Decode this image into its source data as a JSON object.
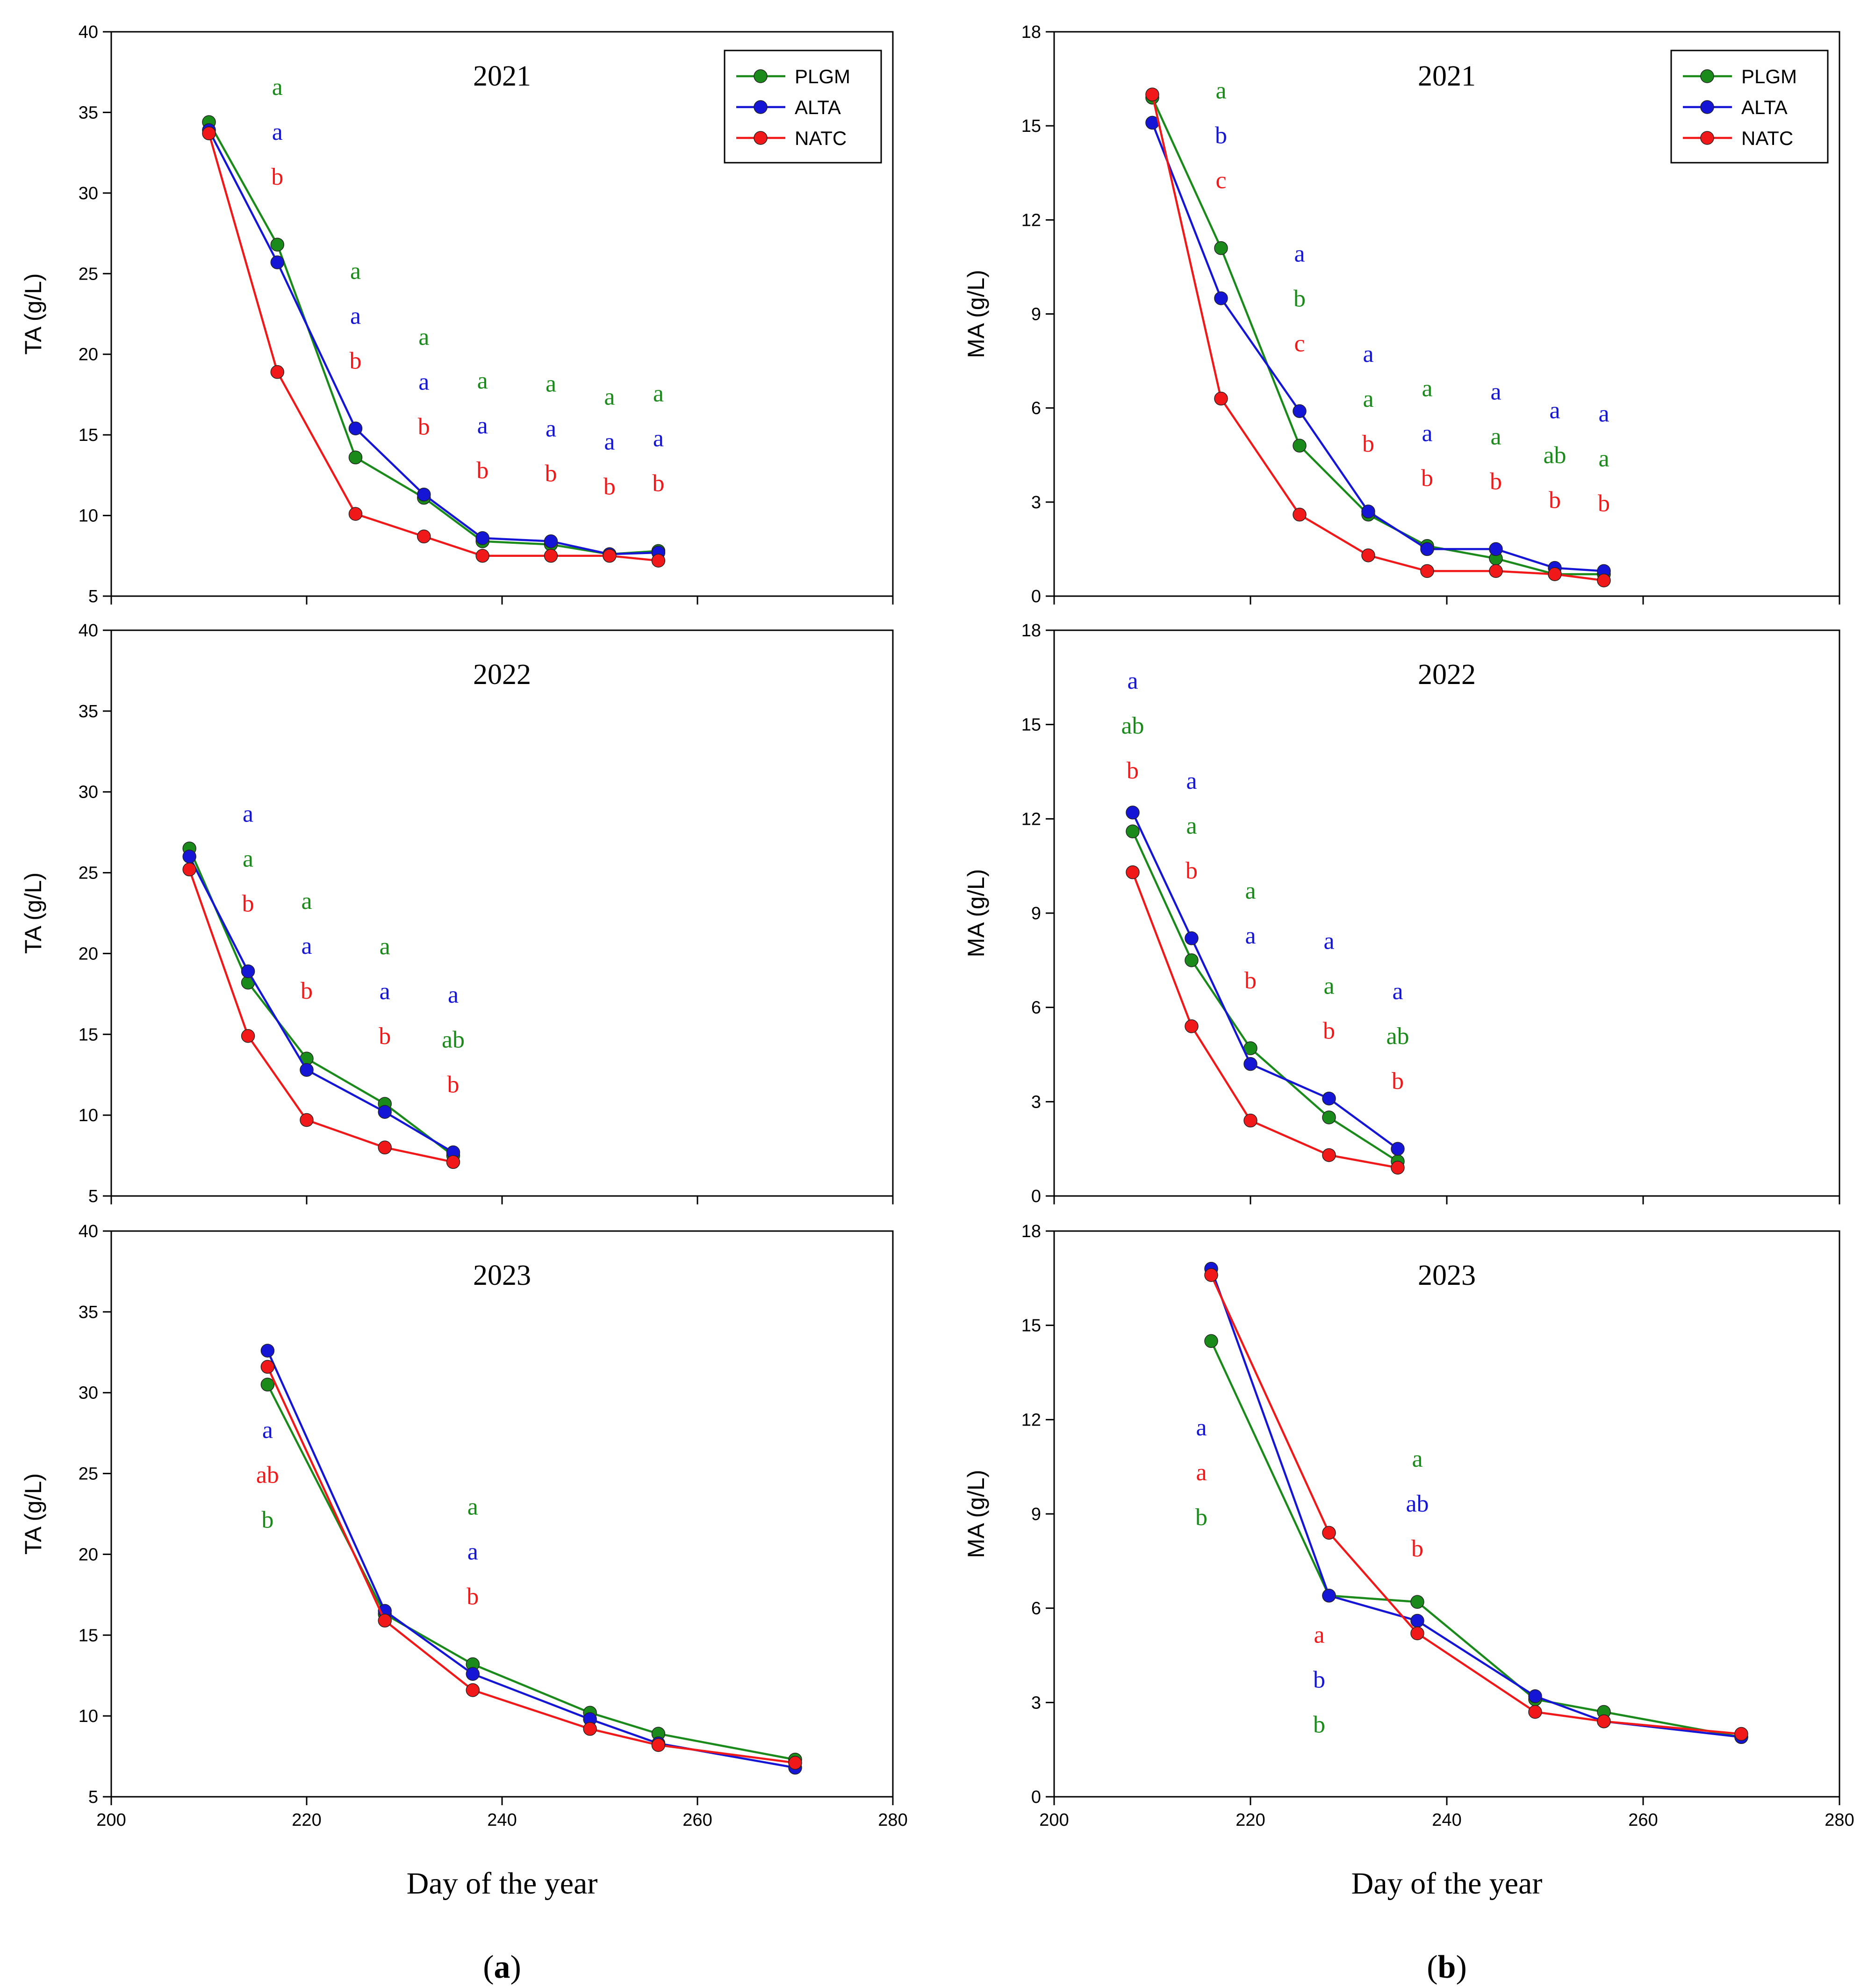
{
  "colors": {
    "PLGM": "#1a8a1a",
    "ALTA": "#1515d6",
    "NATC": "#f01818"
  },
  "legend": [
    "PLGM",
    "ALTA",
    "NATC"
  ],
  "xlabel": "Day of the year",
  "panel_labels": {
    "a": "(a)",
    "b": "(b)"
  },
  "panel_letters": {
    "a": "a",
    "b": "b"
  },
  "chart_data": [
    {
      "type": "line",
      "column": "a",
      "row": 0,
      "title": "2021",
      "ylabel": "TA (g/L)",
      "xlim": [
        200,
        280
      ],
      "ylim": [
        5,
        40
      ],
      "xticks": [
        200,
        220,
        240,
        260,
        280
      ],
      "yticks": [
        5,
        10,
        15,
        20,
        25,
        30,
        35,
        40
      ],
      "show_xticks": false,
      "legend": true,
      "series": [
        {
          "name": "PLGM",
          "x": [
            210,
            217,
            225,
            232,
            238,
            245,
            251,
            256
          ],
          "y": [
            34.4,
            26.8,
            13.6,
            11.1,
            8.4,
            8.2,
            7.6,
            7.8
          ]
        },
        {
          "name": "ALTA",
          "x": [
            210,
            217,
            225,
            232,
            238,
            245,
            251,
            256
          ],
          "y": [
            33.9,
            25.7,
            15.4,
            11.3,
            8.6,
            8.4,
            7.6,
            7.7
          ]
        },
        {
          "name": "NATC",
          "x": [
            210,
            217,
            225,
            232,
            238,
            245,
            251,
            256
          ],
          "y": [
            33.7,
            18.9,
            10.1,
            8.7,
            7.5,
            7.5,
            7.5,
            7.2
          ]
        }
      ],
      "annotations": [
        {
          "x": 217,
          "labels": [
            {
              "s": "PLGM",
              "t": "a"
            },
            {
              "s": "ALTA",
              "t": "a"
            },
            {
              "s": "NATC",
              "t": "b"
            }
          ]
        },
        {
          "x": 225,
          "labels": [
            {
              "s": "PLGM",
              "t": "a"
            },
            {
              "s": "ALTA",
              "t": "a"
            },
            {
              "s": "NATC",
              "t": "b"
            }
          ]
        },
        {
          "x": 232,
          "labels": [
            {
              "s": "PLGM",
              "t": "a"
            },
            {
              "s": "ALTA",
              "t": "a"
            },
            {
              "s": "NATC",
              "t": "b"
            }
          ]
        },
        {
          "x": 238,
          "labels": [
            {
              "s": "PLGM",
              "t": "a"
            },
            {
              "s": "ALTA",
              "t": "a"
            },
            {
              "s": "NATC",
              "t": "b"
            }
          ]
        },
        {
          "x": 245,
          "labels": [
            {
              "s": "PLGM",
              "t": "a"
            },
            {
              "s": "ALTA",
              "t": "a"
            },
            {
              "s": "NATC",
              "t": "b"
            }
          ]
        },
        {
          "x": 251,
          "labels": [
            {
              "s": "PLGM",
              "t": "a"
            },
            {
              "s": "ALTA",
              "t": "a"
            },
            {
              "s": "NATC",
              "t": "b"
            }
          ]
        },
        {
          "x": 256,
          "labels": [
            {
              "s": "PLGM",
              "t": "a"
            },
            {
              "s": "ALTA",
              "t": "a"
            },
            {
              "s": "NATC",
              "t": "b"
            }
          ]
        }
      ]
    },
    {
      "type": "line",
      "column": "a",
      "row": 1,
      "title": "2022",
      "ylabel": "TA (g/L)",
      "xlim": [
        200,
        280
      ],
      "ylim": [
        5,
        40
      ],
      "xticks": [
        200,
        220,
        240,
        260,
        280
      ],
      "yticks": [
        5,
        10,
        15,
        20,
        25,
        30,
        35,
        40
      ],
      "show_xticks": false,
      "legend": false,
      "series": [
        {
          "name": "PLGM",
          "x": [
            208,
            214,
            220,
            228,
            235
          ],
          "y": [
            26.5,
            18.2,
            13.5,
            10.7,
            7.5
          ]
        },
        {
          "name": "ALTA",
          "x": [
            208,
            214,
            220,
            228,
            235
          ],
          "y": [
            26.0,
            18.9,
            12.8,
            10.2,
            7.7
          ]
        },
        {
          "name": "NATC",
          "x": [
            208,
            214,
            220,
            228,
            235
          ],
          "y": [
            25.2,
            14.9,
            9.7,
            8.0,
            7.1
          ]
        }
      ],
      "annotations": [
        {
          "x": 214,
          "labels": [
            {
              "s": "ALTA",
              "t": "a"
            },
            {
              "s": "PLGM",
              "t": "a"
            },
            {
              "s": "NATC",
              "t": "b"
            }
          ]
        },
        {
          "x": 220,
          "labels": [
            {
              "s": "PLGM",
              "t": "a"
            },
            {
              "s": "ALTA",
              "t": "a"
            },
            {
              "s": "NATC",
              "t": "b"
            }
          ]
        },
        {
          "x": 228,
          "labels": [
            {
              "s": "PLGM",
              "t": "a"
            },
            {
              "s": "ALTA",
              "t": "a"
            },
            {
              "s": "NATC",
              "t": "b"
            }
          ]
        },
        {
          "x": 235,
          "labels": [
            {
              "s": "ALTA",
              "t": "a"
            },
            {
              "s": "PLGM",
              "t": "ab"
            },
            {
              "s": "NATC",
              "t": "b"
            }
          ]
        }
      ]
    },
    {
      "type": "line",
      "column": "a",
      "row": 2,
      "title": "2023",
      "ylabel": "TA (g/L)",
      "xlim": [
        200,
        280
      ],
      "ylim": [
        5,
        40
      ],
      "xticks": [
        200,
        220,
        240,
        260,
        280
      ],
      "yticks": [
        5,
        10,
        15,
        20,
        25,
        30,
        35,
        40
      ],
      "show_xticks": true,
      "legend": false,
      "series": [
        {
          "name": "PLGM",
          "x": [
            216,
            228,
            237,
            249,
            256,
            270
          ],
          "y": [
            30.5,
            16.3,
            13.2,
            10.2,
            8.9,
            7.3
          ]
        },
        {
          "name": "ALTA",
          "x": [
            216,
            228,
            237,
            249,
            256,
            270
          ],
          "y": [
            32.6,
            16.5,
            12.6,
            9.8,
            8.3,
            6.8
          ]
        },
        {
          "name": "NATC",
          "x": [
            216,
            228,
            237,
            249,
            256,
            270
          ],
          "y": [
            31.6,
            15.9,
            11.6,
            9.2,
            8.2,
            7.1
          ]
        }
      ],
      "annotations": [
        {
          "x": 216,
          "ystart": 27.2,
          "labels": [
            {
              "s": "ALTA",
              "t": "a"
            },
            {
              "s": "NATC",
              "t": "ab"
            },
            {
              "s": "PLGM",
              "t": "b"
            }
          ]
        },
        {
          "x": 237,
          "labels": [
            {
              "s": "PLGM",
              "t": "a"
            },
            {
              "s": "ALTA",
              "t": "a"
            },
            {
              "s": "NATC",
              "t": "b"
            }
          ]
        }
      ]
    },
    {
      "type": "line",
      "column": "b",
      "row": 0,
      "title": "2021",
      "ylabel": "MA (g/L)",
      "xlim": [
        200,
        280
      ],
      "ylim": [
        0,
        18
      ],
      "xticks": [
        200,
        220,
        240,
        260,
        280
      ],
      "yticks": [
        0,
        3,
        6,
        9,
        12,
        15,
        18
      ],
      "show_xticks": false,
      "legend": true,
      "series": [
        {
          "name": "PLGM",
          "x": [
            210,
            217,
            225,
            232,
            238,
            245,
            251,
            256
          ],
          "y": [
            15.9,
            11.1,
            4.8,
            2.6,
            1.6,
            1.2,
            0.7,
            0.7
          ]
        },
        {
          "name": "ALTA",
          "x": [
            210,
            217,
            225,
            232,
            238,
            245,
            251,
            256
          ],
          "y": [
            15.1,
            9.5,
            5.9,
            2.7,
            1.5,
            1.5,
            0.9,
            0.8
          ]
        },
        {
          "name": "NATC",
          "x": [
            210,
            217,
            225,
            232,
            238,
            245,
            251,
            256
          ],
          "y": [
            16.0,
            6.3,
            2.6,
            1.3,
            0.8,
            0.8,
            0.7,
            0.5
          ]
        }
      ],
      "annotations": [
        {
          "x": 217,
          "labels": [
            {
              "s": "PLGM",
              "t": "a"
            },
            {
              "s": "ALTA",
              "t": "b"
            },
            {
              "s": "NATC",
              "t": "c"
            }
          ]
        },
        {
          "x": 225,
          "labels": [
            {
              "s": "ALTA",
              "t": "a"
            },
            {
              "s": "PLGM",
              "t": "b"
            },
            {
              "s": "NATC",
              "t": "c"
            }
          ]
        },
        {
          "x": 232,
          "labels": [
            {
              "s": "ALTA",
              "t": "a"
            },
            {
              "s": "PLGM",
              "t": "a"
            },
            {
              "s": "NATC",
              "t": "b"
            }
          ]
        },
        {
          "x": 238,
          "labels": [
            {
              "s": "PLGM",
              "t": "a"
            },
            {
              "s": "ALTA",
              "t": "a"
            },
            {
              "s": "NATC",
              "t": "b"
            }
          ]
        },
        {
          "x": 245,
          "labels": [
            {
              "s": "ALTA",
              "t": "a"
            },
            {
              "s": "PLGM",
              "t": "a"
            },
            {
              "s": "NATC",
              "t": "b"
            }
          ]
        },
        {
          "x": 251,
          "labels": [
            {
              "s": "ALTA",
              "t": "a"
            },
            {
              "s": "PLGM",
              "t": "ab"
            },
            {
              "s": "NATC",
              "t": "b"
            }
          ]
        },
        {
          "x": 256,
          "labels": [
            {
              "s": "ALTA",
              "t": "a"
            },
            {
              "s": "PLGM",
              "t": "a"
            },
            {
              "s": "NATC",
              "t": "b"
            }
          ]
        }
      ]
    },
    {
      "type": "line",
      "column": "b",
      "row": 1,
      "title": "2022",
      "ylabel": "MA (g/L)",
      "xlim": [
        200,
        280
      ],
      "ylim": [
        0,
        18
      ],
      "xticks": [
        200,
        220,
        240,
        260,
        280
      ],
      "yticks": [
        0,
        3,
        6,
        9,
        12,
        15,
        18
      ],
      "show_xticks": false,
      "legend": false,
      "series": [
        {
          "name": "PLGM",
          "x": [
            208,
            214,
            220,
            228,
            235
          ],
          "y": [
            11.6,
            7.5,
            4.7,
            2.5,
            1.1
          ]
        },
        {
          "name": "ALTA",
          "x": [
            208,
            214,
            220,
            228,
            235
          ],
          "y": [
            12.2,
            8.2,
            4.2,
            3.1,
            1.5
          ]
        },
        {
          "name": "NATC",
          "x": [
            208,
            214,
            220,
            228,
            235
          ],
          "y": [
            10.3,
            5.4,
            2.4,
            1.3,
            0.9
          ]
        }
      ],
      "annotations": [
        {
          "x": 208,
          "labels": [
            {
              "s": "ALTA",
              "t": "a"
            },
            {
              "s": "PLGM",
              "t": "ab"
            },
            {
              "s": "NATC",
              "t": "b"
            }
          ]
        },
        {
          "x": 214,
          "labels": [
            {
              "s": "ALTA",
              "t": "a"
            },
            {
              "s": "PLGM",
              "t": "a"
            },
            {
              "s": "NATC",
              "t": "b"
            }
          ]
        },
        {
          "x": 220,
          "labels": [
            {
              "s": "PLGM",
              "t": "a"
            },
            {
              "s": "ALTA",
              "t": "a"
            },
            {
              "s": "NATC",
              "t": "b"
            }
          ]
        },
        {
          "x": 228,
          "labels": [
            {
              "s": "ALTA",
              "t": "a"
            },
            {
              "s": "PLGM",
              "t": "a"
            },
            {
              "s": "NATC",
              "t": "b"
            }
          ]
        },
        {
          "x": 235,
          "labels": [
            {
              "s": "ALTA",
              "t": "a"
            },
            {
              "s": "PLGM",
              "t": "ab"
            },
            {
              "s": "NATC",
              "t": "b"
            }
          ]
        }
      ]
    },
    {
      "type": "line",
      "column": "b",
      "row": 2,
      "title": "2023",
      "ylabel": "MA (g/L)",
      "xlim": [
        200,
        280
      ],
      "ylim": [
        0,
        18
      ],
      "xticks": [
        200,
        220,
        240,
        260,
        280
      ],
      "yticks": [
        0,
        3,
        6,
        9,
        12,
        15,
        18
      ],
      "show_xticks": true,
      "legend": false,
      "series": [
        {
          "name": "PLGM",
          "x": [
            216,
            228,
            237,
            249,
            256,
            270
          ],
          "y": [
            14.5,
            6.4,
            6.2,
            3.1,
            2.7,
            1.9
          ]
        },
        {
          "name": "ALTA",
          "x": [
            216,
            228,
            237,
            249,
            256,
            270
          ],
          "y": [
            16.8,
            6.4,
            5.6,
            3.2,
            2.4,
            1.9
          ]
        },
        {
          "name": "NATC",
          "x": [
            216,
            228,
            237,
            249,
            256,
            270
          ],
          "y": [
            16.6,
            8.4,
            5.2,
            2.7,
            2.4,
            2.0
          ]
        }
      ],
      "annotations": [
        {
          "x": 215,
          "ystart": 11.5,
          "labels": [
            {
              "s": "ALTA",
              "t": "a"
            },
            {
              "s": "NATC",
              "t": "a"
            },
            {
              "s": "PLGM",
              "t": "b"
            }
          ]
        },
        {
          "x": 237,
          "ystart": 10.5,
          "labels": [
            {
              "s": "PLGM",
              "t": "a"
            },
            {
              "s": "ALTA",
              "t": "ab"
            },
            {
              "s": "NATC",
              "t": "b"
            }
          ]
        },
        {
          "x": 227,
          "ystart": 4.9,
          "labels": [
            {
              "s": "NATC",
              "t": "a"
            },
            {
              "s": "ALTA",
              "t": "b"
            },
            {
              "s": "PLGM",
              "t": "b"
            }
          ]
        }
      ]
    }
  ]
}
